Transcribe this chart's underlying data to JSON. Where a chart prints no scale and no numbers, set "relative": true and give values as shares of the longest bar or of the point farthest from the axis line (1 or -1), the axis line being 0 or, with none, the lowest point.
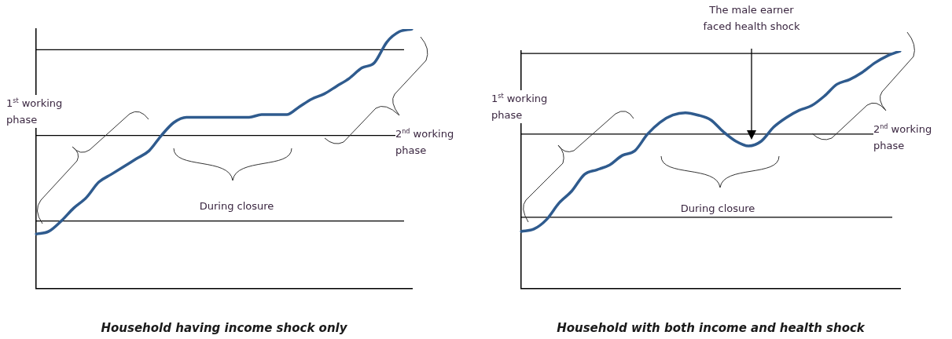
{
  "chart_data": [
    {
      "type": "line",
      "title": "Household having income shock only",
      "relative": true,
      "legend": false,
      "grid": false,
      "categories": [
        null,
        null,
        null,
        null,
        null,
        null,
        null,
        null,
        null,
        null,
        null,
        null,
        null,
        null,
        null,
        null,
        null,
        null,
        null,
        null,
        null,
        null,
        null,
        null,
        null,
        null,
        null,
        null,
        null,
        null,
        null
      ],
      "series": [
        {
          "color": "#2f5b8e",
          "values": [
            0.21,
            0.22,
            0.26,
            0.31,
            0.35,
            0.41,
            0.44,
            0.47,
            0.5,
            0.53,
            0.59,
            0.64,
            0.66,
            0.66,
            0.66,
            0.66,
            0.66,
            0.66,
            0.67,
            0.67,
            0.67,
            0.7,
            0.73,
            0.75,
            0.78,
            0.81,
            0.85,
            0.87,
            0.95,
            0.99,
            1
          ]
        }
      ],
      "ref_lines": [
        {
          "axis": "y",
          "value": 0.92
        },
        {
          "axis": "y",
          "value": 0.59
        },
        {
          "axis": "y",
          "value": 0.26
        }
      ],
      "annotations": [
        "1$^{st}$ working phase",
        "2$^{nd}$ working phase",
        "During closure"
      ]
    },
    {
      "type": "line",
      "title": "Household with both income and health shock",
      "relative": true,
      "legend": false,
      "grid": false,
      "categories": [
        null,
        null,
        null,
        null,
        null,
        null,
        null,
        null,
        null,
        null,
        null,
        null,
        null,
        null,
        null,
        null,
        null,
        null,
        null,
        null,
        null,
        null,
        null,
        null,
        null,
        null,
        null,
        null,
        null,
        null,
        null
      ],
      "series": [
        {
          "color": "#2f5b8e",
          "values": [
            0.24,
            0.25,
            0.29,
            0.36,
            0.41,
            0.48,
            0.5,
            0.52,
            0.56,
            0.58,
            0.65,
            0.7,
            0.73,
            0.74,
            0.73,
            0.71,
            0.66,
            0.62,
            0.6,
            0.62,
            0.68,
            0.72,
            0.75,
            0.77,
            0.81,
            0.86,
            0.88,
            0.91,
            0.95,
            0.98,
            1
          ]
        }
      ],
      "ref_lines": [
        {
          "axis": "y",
          "value": 0.99
        },
        {
          "axis": "y",
          "value": 0.65
        },
        {
          "axis": "y",
          "value": 0.3
        }
      ],
      "annotations": [
        "The male earner faced health shock",
        "1$^{st}$ working phase",
        "2$^{nd}$ working phase",
        "During closure"
      ]
    }
  ]
}
